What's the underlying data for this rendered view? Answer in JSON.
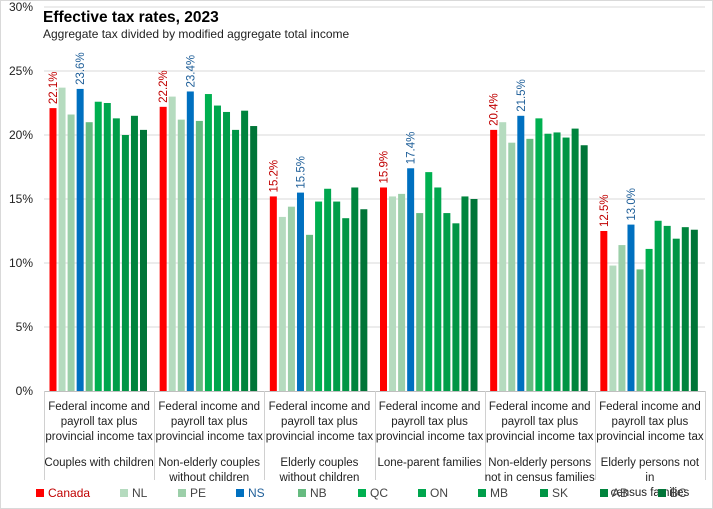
{
  "chart_data": {
    "type": "bar",
    "title": "Effective tax rates, 2023",
    "subtitle": "Aggregate  tax divided by modified aggregate total income",
    "xlabel": "",
    "ylabel": "",
    "ylim": [
      0,
      30
    ],
    "yticks": [
      0,
      5,
      10,
      15,
      20,
      25,
      30
    ],
    "ytick_labels": [
      "0%",
      "5%",
      "10%",
      "15%",
      "20%",
      "25%",
      "30%"
    ],
    "grid": true,
    "legend_position": "bottom",
    "tax_label": [
      "Federal income and",
      "payroll tax plus",
      "provincial income tax"
    ],
    "categories": [
      {
        "tax": "Federal income and payroll tax plus provincial income tax",
        "family": [
          "Couples with children"
        ]
      },
      {
        "tax": "Federal income and payroll tax plus provincial income tax",
        "family": [
          "Non-elderly couples",
          "without children"
        ]
      },
      {
        "tax": "Federal income and payroll tax plus provincial income tax",
        "family": [
          "Elderly couples",
          "without children"
        ]
      },
      {
        "tax": "Federal income and payroll tax plus provincial income tax",
        "family": [
          "Lone-parent families"
        ]
      },
      {
        "tax": "Federal income and payroll tax plus provincial income tax",
        "family": [
          "Non-elderly persons",
          "not in census families"
        ]
      },
      {
        "tax": "Federal income and payroll tax plus provincial income tax",
        "family": [
          "Elderly persons not in",
          "census families"
        ]
      }
    ],
    "series": [
      {
        "name": "Canada",
        "color": "#ff0000",
        "labeled": true,
        "label_color": "#c00000",
        "values": [
          22.1,
          22.2,
          15.2,
          15.9,
          20.4,
          12.5
        ]
      },
      {
        "name": "NL",
        "color": "#b5dbbf",
        "values": [
          23.7,
          23.0,
          13.6,
          15.2,
          21.0,
          9.8
        ]
      },
      {
        "name": "PE",
        "color": "#9ccfa9",
        "values": [
          21.6,
          21.2,
          14.4,
          15.4,
          19.4,
          11.4
        ]
      },
      {
        "name": "NS",
        "color": "#0070c0",
        "labeled": true,
        "label_color": "#1f5f99",
        "values": [
          23.6,
          23.4,
          15.5,
          17.4,
          21.5,
          13.0
        ]
      },
      {
        "name": "NB",
        "color": "#66bb80",
        "values": [
          21.0,
          21.1,
          12.2,
          13.9,
          19.7,
          9.5
        ]
      },
      {
        "name": "QC",
        "color": "#00b050",
        "values": [
          22.6,
          23.2,
          14.8,
          17.1,
          21.3,
          11.1
        ]
      },
      {
        "name": "ON",
        "color": "#00a64e",
        "values": [
          22.5,
          22.3,
          15.8,
          15.9,
          20.1,
          13.3
        ]
      },
      {
        "name": "MB",
        "color": "#009e4a",
        "values": [
          21.3,
          21.8,
          14.8,
          13.9,
          20.2,
          12.9
        ]
      },
      {
        "name": "SK",
        "color": "#009545",
        "values": [
          20.0,
          20.4,
          13.5,
          13.1,
          19.8,
          11.9
        ]
      },
      {
        "name": "AB",
        "color": "#00843d",
        "values": [
          21.5,
          21.9,
          15.9,
          15.2,
          20.5,
          12.8
        ]
      },
      {
        "name": "BC",
        "color": "#007538",
        "values": [
          20.4,
          20.7,
          14.2,
          15.0,
          19.2,
          12.6
        ]
      }
    ]
  }
}
